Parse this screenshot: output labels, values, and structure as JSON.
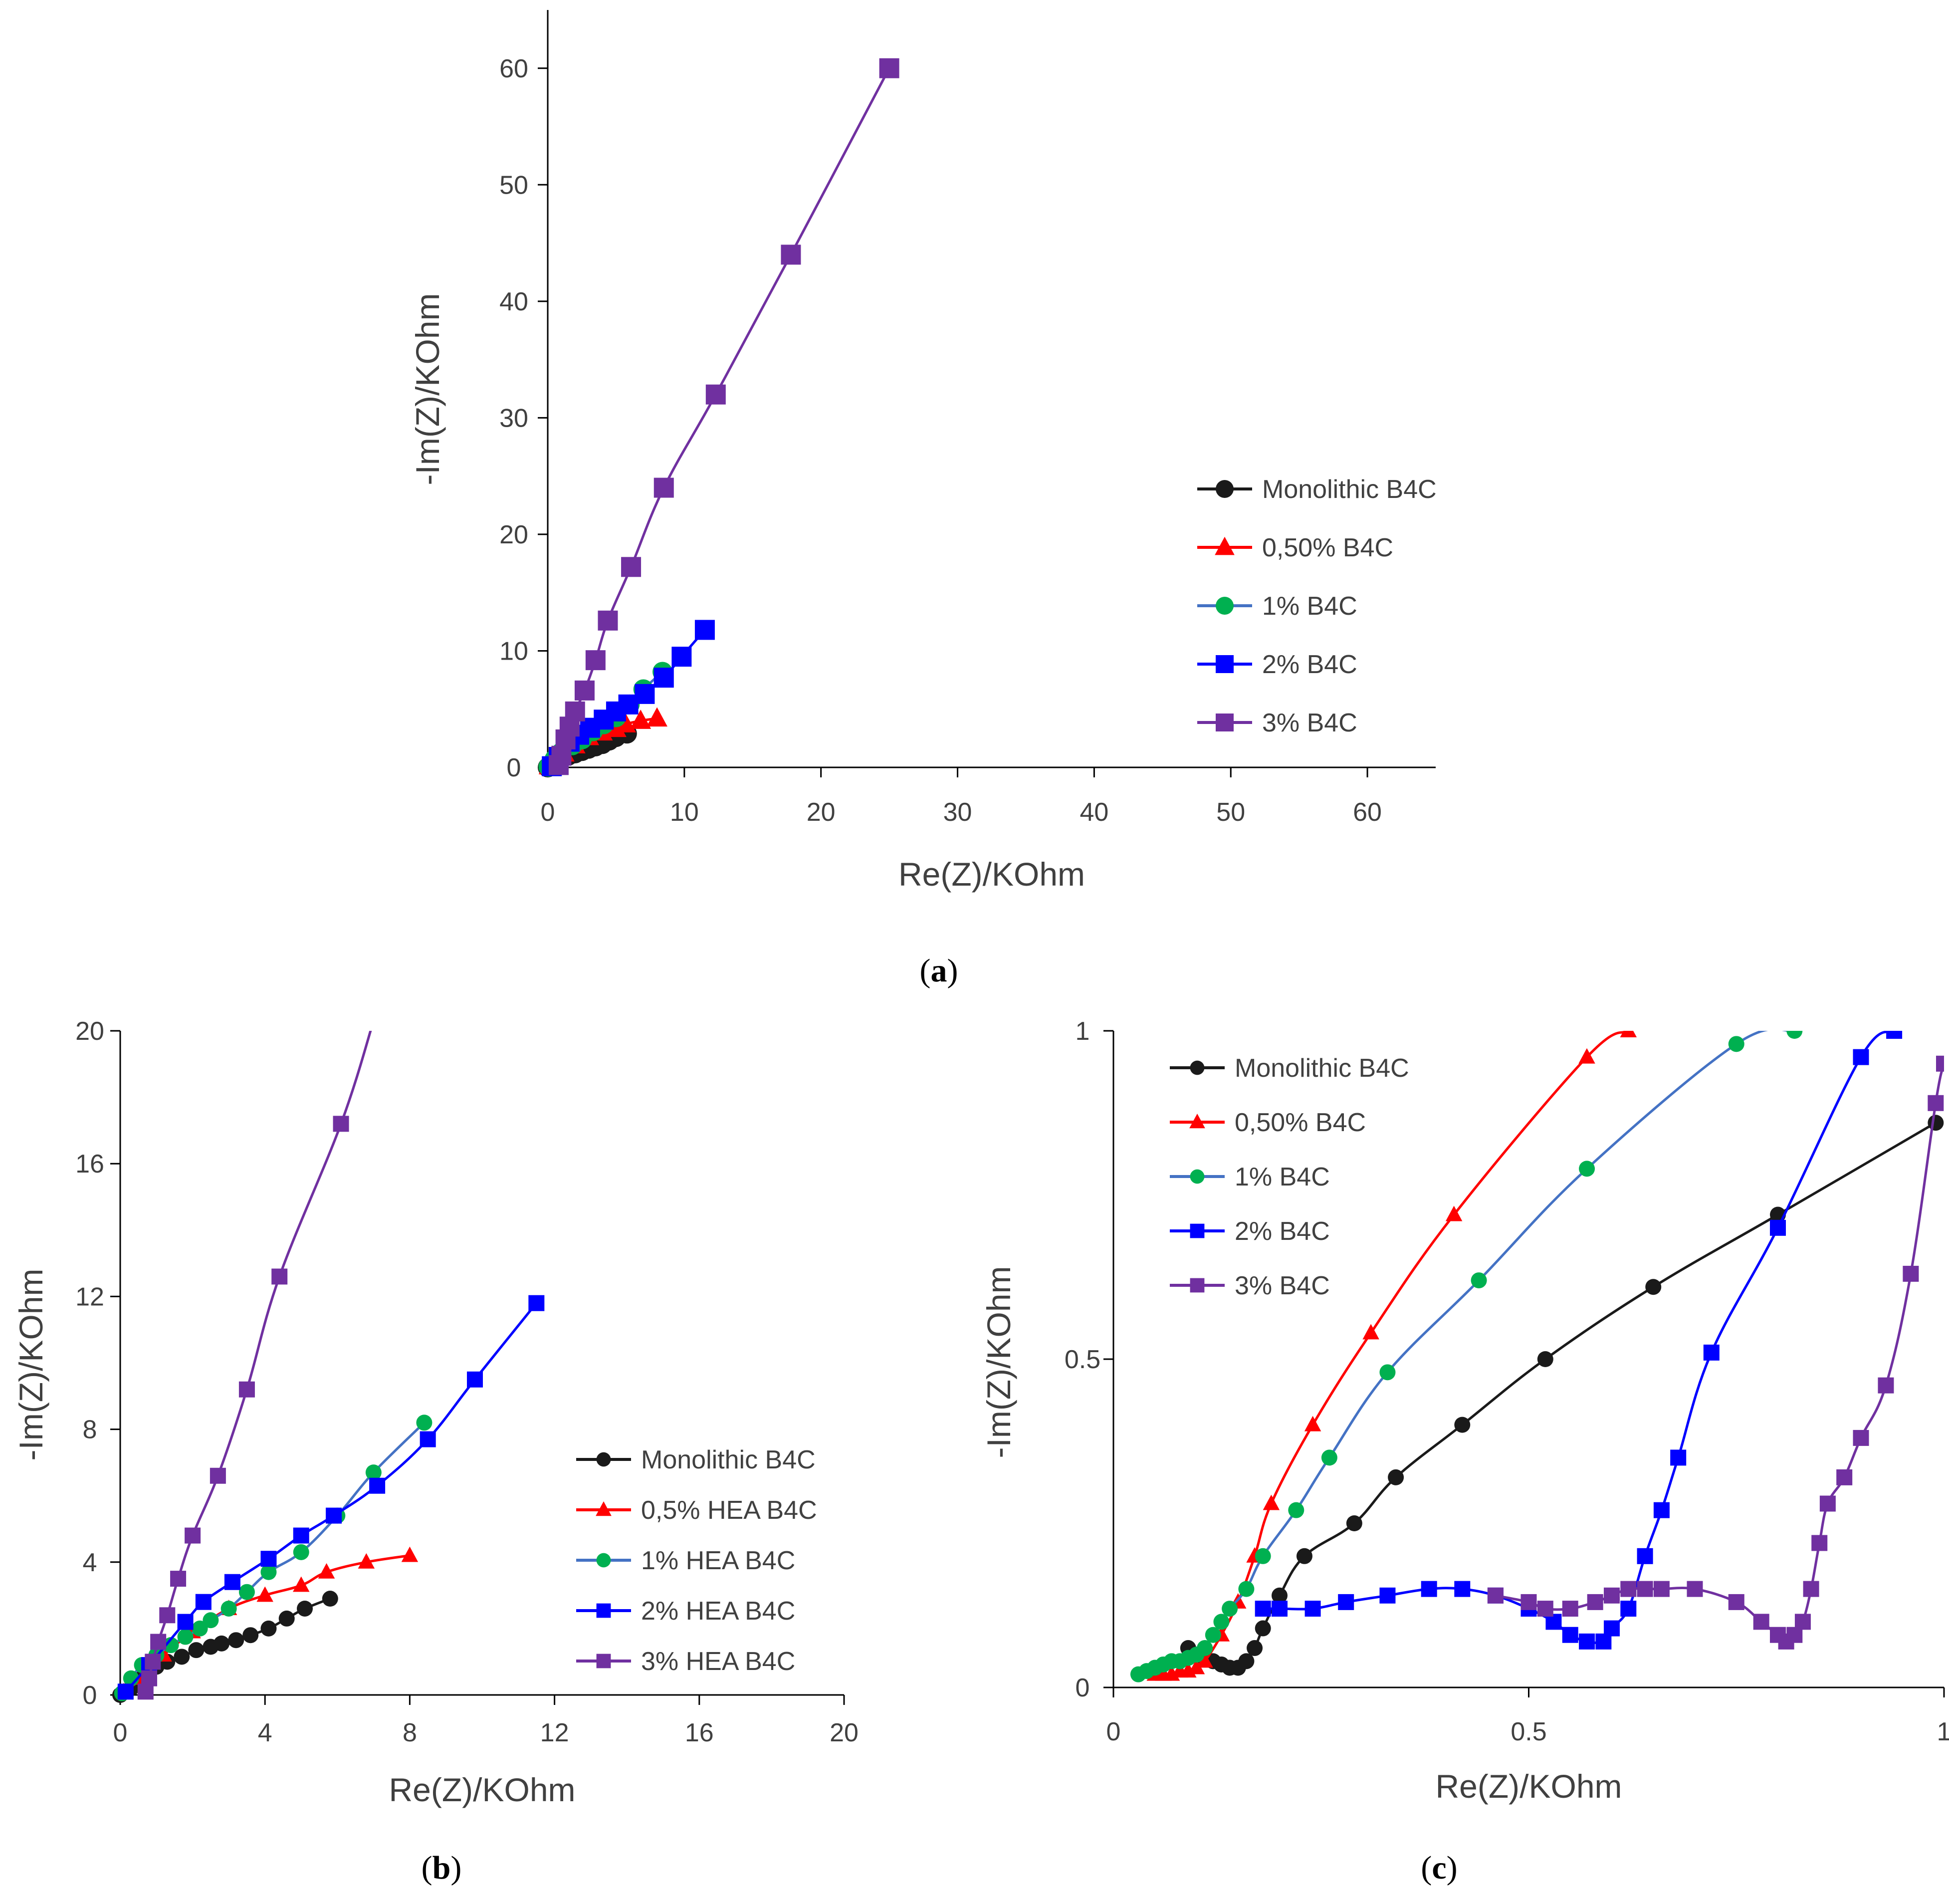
{
  "captions": {
    "a": {
      "open": "(",
      "letter": "a",
      "close": ")"
    },
    "b": {
      "open": "(",
      "letter": "b",
      "close": ")"
    },
    "c": {
      "open": "(",
      "letter": "c",
      "close": ")"
    }
  },
  "colors": {
    "Monolithic": "#1a1a1a",
    "p05": "#ff0000",
    "p1_line": "#4472c4",
    "p1_marker": "#00b050",
    "p2": "#0000ff",
    "p3": "#7030a0",
    "axis": "#000000"
  },
  "chart_data": [
    {
      "id": "a",
      "type": "scatter",
      "xlabel": "Re(Z)/KOhm",
      "ylabel": "-Im(Z)/KOhm",
      "xlim": [
        0,
        65
      ],
      "ylim": [
        0,
        65
      ],
      "xticks": [
        0,
        10,
        20,
        30,
        40,
        50,
        60
      ],
      "yticks": [
        0,
        10,
        20,
        30,
        40,
        50,
        60
      ],
      "xtick_labels": [
        "0",
        "10",
        "20",
        "30",
        "40",
        "50",
        "60"
      ],
      "ytick_labels": [
        "0",
        "10",
        "20",
        "30",
        "40",
        "50",
        "60"
      ],
      "legend_position": "right",
      "series": [
        {
          "name": "Monolithic B4C",
          "marker": "circle",
          "line_color": "#1a1a1a",
          "marker_color": "#1a1a1a",
          "x": [
            0,
            0.3,
            0.6,
            1.0,
            1.5,
            2.0,
            2.5,
            3.0,
            3.5,
            4.0,
            4.5,
            5.0,
            5.8
          ],
          "y": [
            0,
            0.2,
            0.5,
            0.8,
            1.0,
            1.2,
            1.4,
            1.6,
            1.8,
            2.0,
            2.3,
            2.6,
            2.9
          ]
        },
        {
          "name": "0,50% B4C",
          "marker": "triangle",
          "line_color": "#ff0000",
          "marker_color": "#ff0000",
          "x": [
            0.1,
            0.6,
            1.2,
            2.0,
            3.0,
            4.0,
            5.0,
            5.7,
            6.8,
            8.0
          ],
          "y": [
            0.1,
            0.5,
            1.2,
            1.9,
            2.6,
            3.0,
            3.3,
            3.7,
            4.0,
            4.2
          ]
        },
        {
          "name": "1% B4C",
          "marker": "circle",
          "line_color": "#4472c4",
          "marker_color": "#00b050",
          "x": [
            0.05,
            0.5,
            1.0,
            1.8,
            2.5,
            3.3,
            4.1,
            5.0,
            6.0,
            7.0,
            8.4
          ],
          "y": [
            0.05,
            0.7,
            1.3,
            1.9,
            2.4,
            3.1,
            3.7,
            4.3,
            5.4,
            6.7,
            8.2
          ]
        },
        {
          "name": "2% B4C",
          "marker": "square",
          "line_color": "#0000ff",
          "marker_color": "#0000ff",
          "x": [
            0.3,
            0.8,
            1.6,
            2.3,
            3.1,
            4.1,
            5.0,
            5.9,
            7.1,
            8.5,
            9.8,
            11.5
          ],
          "y": [
            0.1,
            0.9,
            2.2,
            2.8,
            3.4,
            4.1,
            4.8,
            5.4,
            6.3,
            7.7,
            9.5,
            11.8
          ]
        },
        {
          "name": "3% B4C",
          "marker": "square",
          "line_color": "#7030a0",
          "marker_color": "#7030a0",
          "x": [
            0.8,
            1.0,
            1.3,
            1.6,
            2.0,
            2.7,
            3.5,
            4.4,
            6.1,
            8.5,
            12.3,
            17.8,
            25.0
          ],
          "y": [
            0.2,
            1.0,
            2.4,
            3.5,
            4.8,
            6.6,
            9.2,
            12.6,
            17.2,
            24.0,
            32.0,
            44.0,
            60.0
          ]
        }
      ]
    },
    {
      "id": "b",
      "type": "scatter",
      "xlabel": "Re(Z)/KOhm",
      "ylabel": "-Im(Z)/KOhm",
      "xlim": [
        0,
        20
      ],
      "ylim": [
        0,
        20
      ],
      "xticks": [
        0,
        4,
        8,
        12,
        16,
        20
      ],
      "yticks": [
        0,
        4,
        8,
        12,
        16,
        20
      ],
      "xtick_labels": [
        "0",
        "4",
        "8",
        "12",
        "16",
        "20"
      ],
      "ytick_labels": [
        "0",
        "4",
        "8",
        "12",
        "16",
        "20"
      ],
      "legend_position": "right",
      "series": [
        {
          "name": "Monolithic B4C",
          "marker": "circle",
          "line_color": "#1a1a1a",
          "marker_color": "#1a1a1a",
          "x": [
            0,
            0.3,
            0.6,
            1.0,
            1.3,
            1.7,
            2.1,
            2.5,
            2.8,
            3.2,
            3.6,
            4.1,
            4.6,
            5.1,
            5.8
          ],
          "y": [
            0,
            0.2,
            0.5,
            0.85,
            1.0,
            1.15,
            1.35,
            1.45,
            1.55,
            1.65,
            1.8,
            2.0,
            2.3,
            2.6,
            2.9
          ]
        },
        {
          "name": "0,5% HEA B4C",
          "marker": "triangle",
          "line_color": "#ff0000",
          "marker_color": "#ff0000",
          "x": [
            0.1,
            0.6,
            1.2,
            2.0,
            3.0,
            4.0,
            5.0,
            5.7,
            6.8,
            8.0
          ],
          "y": [
            0.1,
            0.5,
            1.2,
            1.9,
            2.6,
            3.0,
            3.3,
            3.7,
            4.0,
            4.2
          ]
        },
        {
          "name": "1% HEA B4C",
          "marker": "circle",
          "line_color": "#4472c4",
          "marker_color": "#00b050",
          "x": [
            0.05,
            0.3,
            0.6,
            1.0,
            1.4,
            1.8,
            2.2,
            2.5,
            3.0,
            3.5,
            4.1,
            5.0,
            6.0,
            7.0,
            8.4
          ],
          "y": [
            0.05,
            0.5,
            0.9,
            1.2,
            1.5,
            1.75,
            2.0,
            2.25,
            2.6,
            3.1,
            3.7,
            4.3,
            5.4,
            6.7,
            8.2
          ]
        },
        {
          "name": "2% HEA B4C",
          "marker": "square",
          "line_color": "#0000ff",
          "marker_color": "#0000ff",
          "x": [
            0.15,
            0.8,
            1.8,
            2.3,
            3.1,
            4.1,
            5.0,
            5.9,
            7.1,
            8.5,
            9.8,
            11.5
          ],
          "y": [
            0.1,
            0.9,
            2.2,
            2.8,
            3.4,
            4.1,
            4.8,
            5.4,
            6.3,
            7.7,
            9.5,
            11.8
          ]
        },
        {
          "name": "3% HEA B4C",
          "marker": "square",
          "line_color": "#7030a0",
          "marker_color": "#7030a0",
          "x": [
            0.7,
            0.8,
            0.9,
            1.05,
            1.3,
            1.6,
            2.0,
            2.7,
            3.5,
            4.4,
            6.1,
            7.0
          ],
          "y": [
            0.1,
            0.5,
            1.0,
            1.6,
            2.4,
            3.5,
            4.8,
            6.6,
            9.2,
            12.6,
            17.2,
            20.3
          ]
        }
      ]
    },
    {
      "id": "c",
      "type": "scatter",
      "xlabel": "Re(Z)/KOhm",
      "ylabel": "-Im(Z)/KOhm",
      "xlim": [
        0,
        1
      ],
      "ylim": [
        0,
        1
      ],
      "xticks": [
        0,
        0.5,
        1
      ],
      "yticks": [
        0,
        0.5,
        1
      ],
      "xtick_labels": [
        "0",
        "0.5",
        "1"
      ],
      "ytick_labels": [
        "0",
        "0.5",
        "1"
      ],
      "legend_position": "top-left",
      "series": [
        {
          "name": "Monolithic B4C",
          "marker": "circle",
          "line_color": "#1a1a1a",
          "marker_color": "#1a1a1a",
          "x": [
            0.09,
            0.1,
            0.11,
            0.12,
            0.13,
            0.14,
            0.15,
            0.16,
            0.17,
            0.18,
            0.2,
            0.23,
            0.29,
            0.34,
            0.42,
            0.52,
            0.65,
            0.8,
            0.99
          ],
          "y": [
            0.06,
            0.05,
            0.045,
            0.04,
            0.035,
            0.03,
            0.03,
            0.04,
            0.06,
            0.09,
            0.14,
            0.2,
            0.25,
            0.32,
            0.4,
            0.5,
            0.61,
            0.72,
            0.86
          ]
        },
        {
          "name": "0,50% B4C",
          "marker": "triangle",
          "line_color": "#ff0000",
          "marker_color": "#ff0000",
          "x": [
            0.05,
            0.06,
            0.07,
            0.08,
            0.09,
            0.1,
            0.11,
            0.13,
            0.15,
            0.17,
            0.19,
            0.24,
            0.31,
            0.41,
            0.57,
            0.62
          ],
          "y": [
            0.02,
            0.02,
            0.02,
            0.025,
            0.025,
            0.03,
            0.04,
            0.08,
            0.13,
            0.2,
            0.28,
            0.4,
            0.54,
            0.72,
            0.96,
            1.0
          ]
        },
        {
          "name": "1% B4C",
          "marker": "circle",
          "line_color": "#4472c4",
          "marker_color": "#00b050",
          "x": [
            0.03,
            0.04,
            0.05,
            0.06,
            0.07,
            0.08,
            0.09,
            0.1,
            0.11,
            0.12,
            0.13,
            0.14,
            0.16,
            0.18,
            0.22,
            0.26,
            0.33,
            0.44,
            0.57,
            0.75,
            0.82
          ],
          "y": [
            0.02,
            0.025,
            0.03,
            0.035,
            0.04,
            0.04,
            0.045,
            0.05,
            0.06,
            0.08,
            0.1,
            0.12,
            0.15,
            0.2,
            0.27,
            0.35,
            0.48,
            0.62,
            0.79,
            0.98,
            1.0
          ]
        },
        {
          "name": "2% B4C",
          "marker": "square",
          "line_color": "#0000ff",
          "marker_color": "#0000ff",
          "x": [
            0.18,
            0.2,
            0.24,
            0.28,
            0.33,
            0.38,
            0.42,
            0.46,
            0.5,
            0.53,
            0.55,
            0.57,
            0.59,
            0.6,
            0.62,
            0.64,
            0.66,
            0.68,
            0.72,
            0.8,
            0.9,
            0.94
          ],
          "y": [
            0.12,
            0.12,
            0.12,
            0.13,
            0.14,
            0.15,
            0.15,
            0.14,
            0.12,
            0.1,
            0.08,
            0.07,
            0.07,
            0.09,
            0.12,
            0.2,
            0.27,
            0.35,
            0.51,
            0.7,
            0.96,
            1.0
          ]
        },
        {
          "name": "3% B4C",
          "marker": "square",
          "line_color": "#7030a0",
          "marker_color": "#7030a0",
          "x": [
            0.46,
            0.5,
            0.52,
            0.55,
            0.58,
            0.6,
            0.62,
            0.64,
            0.66,
            0.7,
            0.75,
            0.78,
            0.8,
            0.81,
            0.82,
            0.83,
            0.84,
            0.85,
            0.86,
            0.88,
            0.9,
            0.93,
            0.96,
            0.99,
            1.0
          ],
          "y": [
            0.14,
            0.13,
            0.12,
            0.12,
            0.13,
            0.14,
            0.15,
            0.15,
            0.15,
            0.15,
            0.13,
            0.1,
            0.08,
            0.07,
            0.08,
            0.1,
            0.15,
            0.22,
            0.28,
            0.32,
            0.38,
            0.46,
            0.63,
            0.89,
            0.95
          ]
        }
      ]
    }
  ]
}
